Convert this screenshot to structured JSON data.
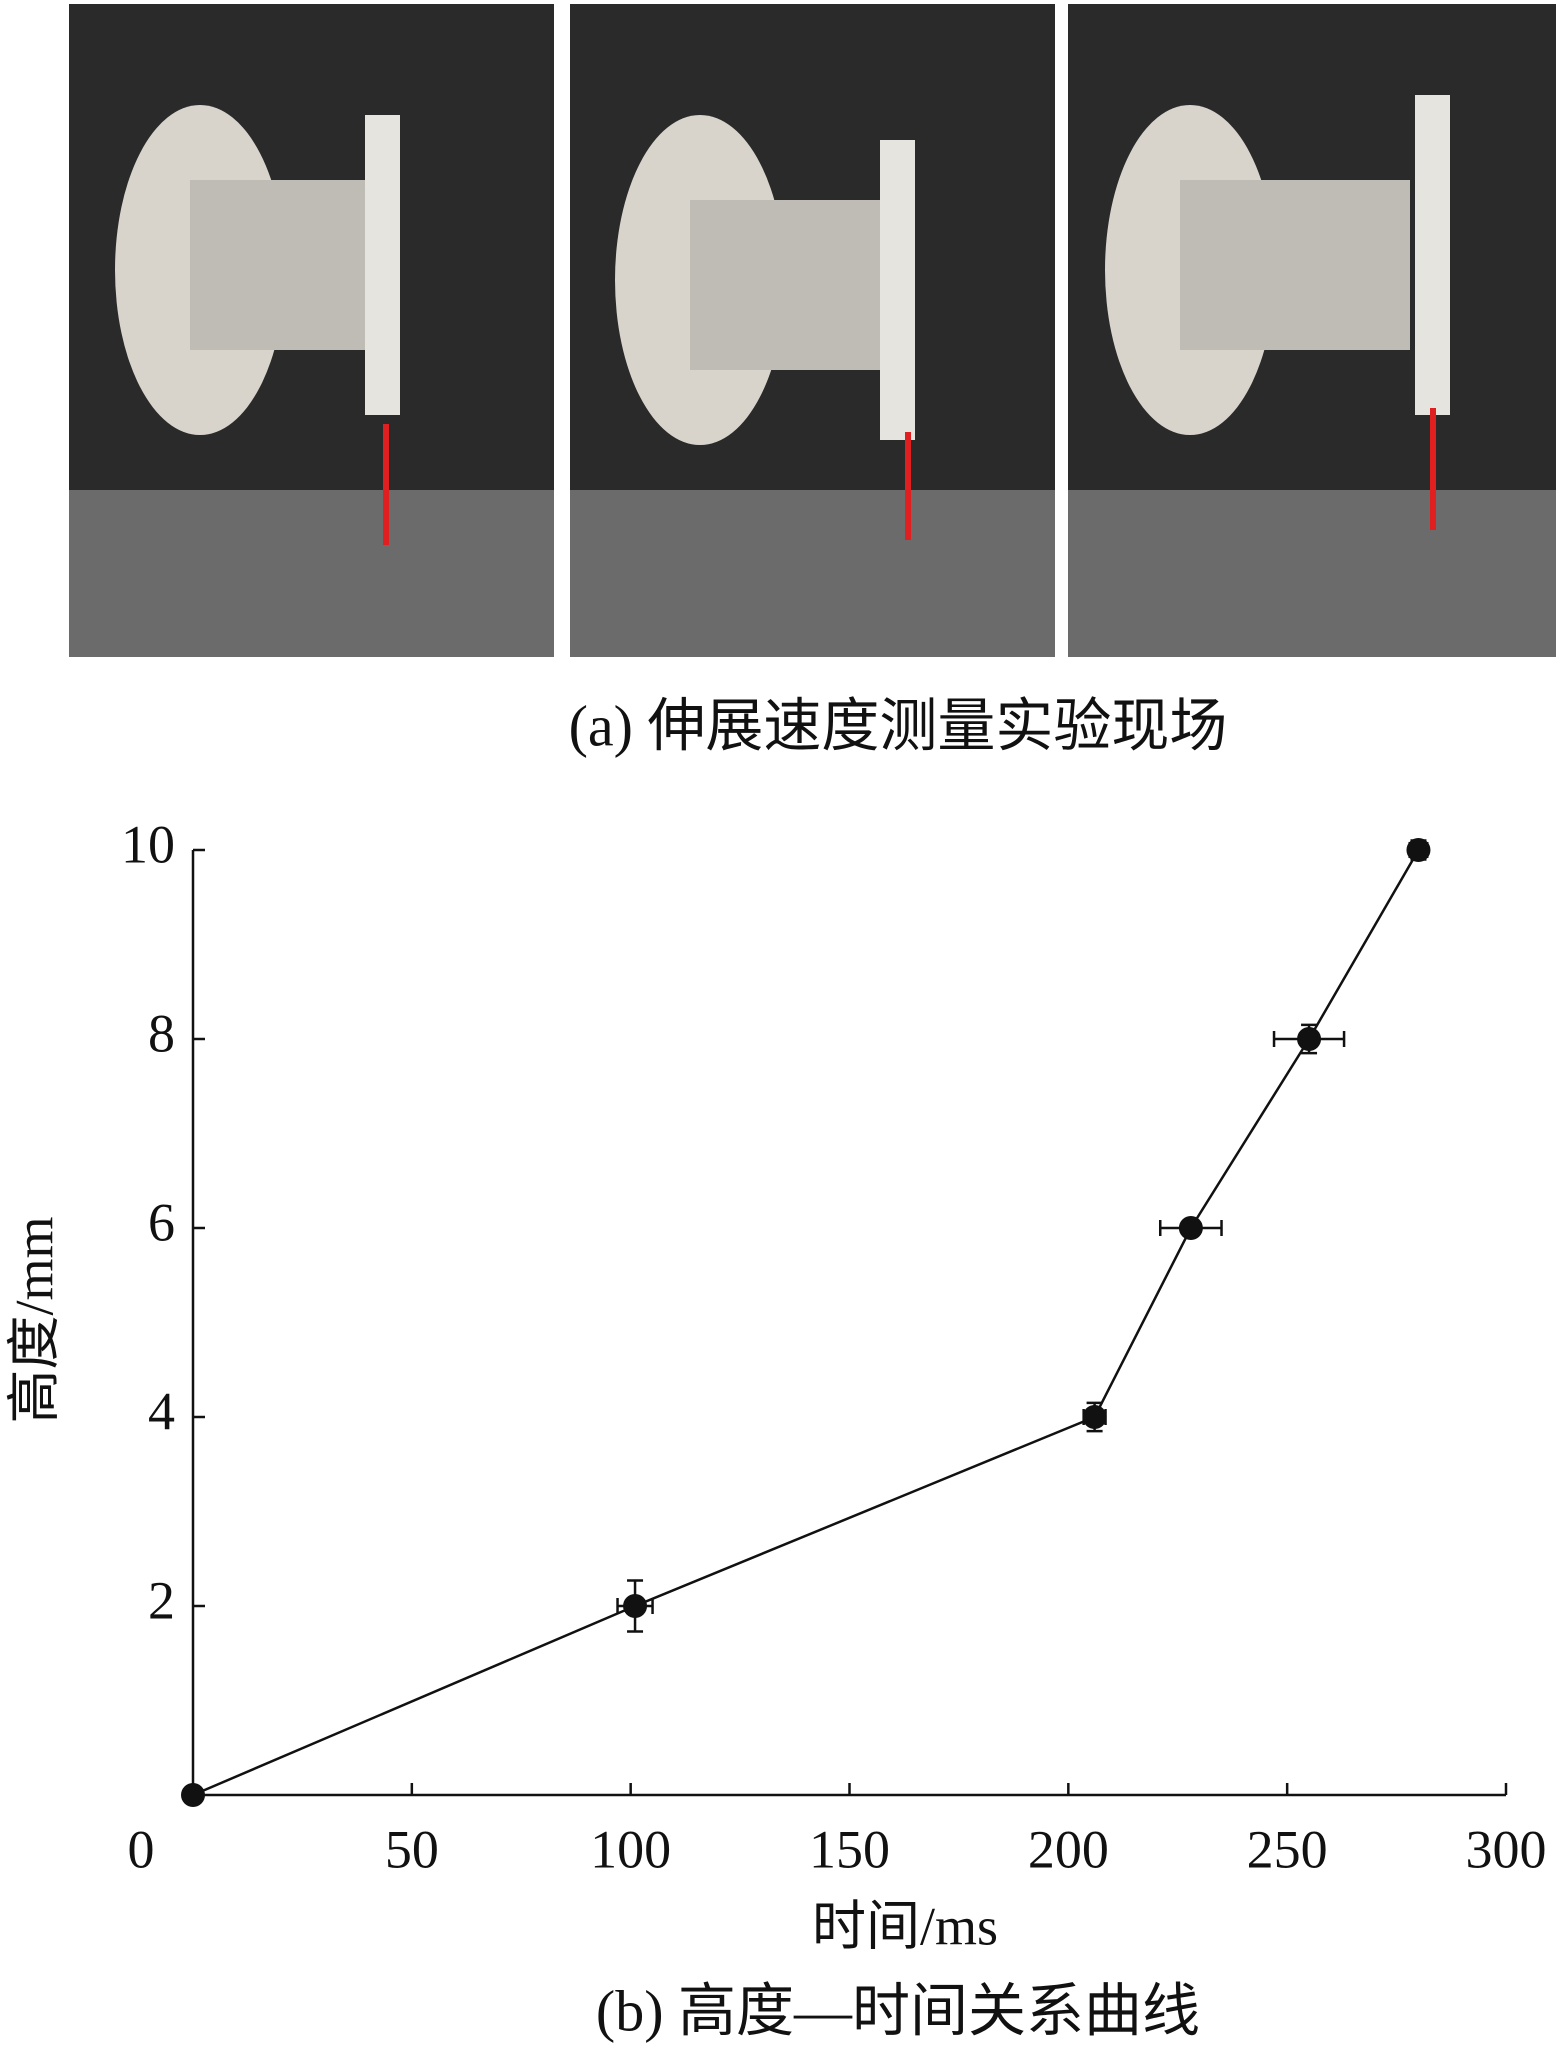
{
  "figure": {
    "caption_a": "(a)  伸展速度测量实验现场"
  },
  "chart_data": {
    "type": "line",
    "caption": "(b)  高度—时间关系曲线",
    "x_label": "时间/ms",
    "y_label": "高度/mm",
    "x": [
      0,
      101,
      206,
      228,
      255,
      280
    ],
    "series": [
      {
        "color": "#111111",
        "values": [
          0,
          2,
          4,
          6,
          8,
          10
        ],
        "x_errors": [
          0,
          4,
          2.5,
          7,
          8,
          2
        ],
        "y_errors": [
          0,
          0.27,
          0.15,
          0.08,
          0.15,
          0.1
        ]
      }
    ],
    "xlim": [
      0,
      300
    ],
    "ylim": [
      0,
      10
    ],
    "xticks": [
      0,
      50,
      100,
      150,
      200,
      250,
      300
    ],
    "yticks": [
      2,
      4,
      6,
      8,
      10
    ],
    "grid": false
  }
}
